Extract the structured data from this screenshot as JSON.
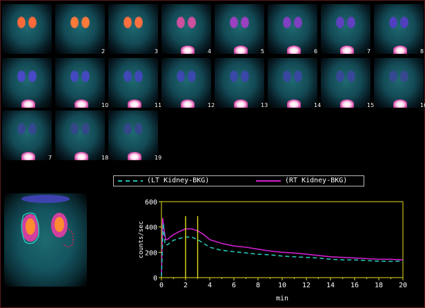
{
  "frames": [
    {
      "number": "",
      "kidney_color": "#ff6a3a",
      "bladder": false
    },
    {
      "number": "2",
      "kidney_color": "#ff7a3a",
      "bladder": false
    },
    {
      "number": "3",
      "kidney_color": "#ff7040",
      "bladder": false
    },
    {
      "number": "4",
      "kidney_color": "#d050a0",
      "bladder": true
    },
    {
      "number": "5",
      "kidney_color": "#9a40c0",
      "bladder": true
    },
    {
      "number": "6",
      "kidney_color": "#8040c0",
      "bladder": true
    },
    {
      "number": "7",
      "kidney_color": "#6040c0",
      "bladder": true
    },
    {
      "number": "8",
      "kidney_color": "#5040c0",
      "bladder": true
    },
    {
      "number": "",
      "kidney_color": "#4a48c8",
      "bladder": true
    },
    {
      "number": "10",
      "kidney_color": "#4448c0",
      "bladder": true
    },
    {
      "number": "11",
      "kidney_color": "#4048b8",
      "bladder": true
    },
    {
      "number": "12",
      "kidney_color": "#3c48b0",
      "bladder": true
    },
    {
      "number": "13",
      "kidney_color": "#3a48a8",
      "bladder": true
    },
    {
      "number": "14",
      "kidney_color": "#3848a0",
      "bladder": true
    },
    {
      "number": "15",
      "kidney_color": "#384898",
      "bladder": true
    },
    {
      "number": "16",
      "kidney_color": "#364890",
      "bladder": true
    },
    {
      "number": "7",
      "kidney_color": "#344890",
      "bladder": true
    },
    {
      "number": "18",
      "kidney_color": "#344888",
      "bladder": true
    },
    {
      "number": "19",
      "kidney_color": "#324888",
      "bladder": true
    }
  ],
  "legend": {
    "lt_label": "(LT Kidney-BKG)",
    "rt_label": "(RT Kidney-BKG)",
    "lt_color": "#27c4b4",
    "rt_color": "#d020d0"
  },
  "chart_data": {
    "type": "line",
    "xlabel": "min",
    "ylabel": "counts/sec",
    "xlim": [
      0,
      20
    ],
    "ylim": [
      0,
      600
    ],
    "x_ticks": [
      "0",
      "2",
      "4",
      "6",
      "8",
      "10",
      "12",
      "14",
      "16",
      "18",
      "20"
    ],
    "y_ticks": [
      "0",
      "200",
      "400",
      "600"
    ],
    "markers_x": [
      2,
      3
    ],
    "marker_color": "#e8e020",
    "axis_color": "#e8e020",
    "series": [
      {
        "name": "(RT Kidney-BKG)",
        "color": "#d020d0",
        "style": "solid",
        "x": [
          0,
          0.1,
          0.2,
          0.35,
          0.5,
          0.7,
          1.0,
          1.5,
          2.0,
          2.5,
          3.0,
          3.5,
          4.0,
          5.0,
          6.0,
          7.0,
          8.0,
          9.0,
          10.0,
          11.0,
          12.0,
          13.0,
          14.0,
          15.0,
          16.0,
          17.0,
          18.0,
          19.0,
          20.0
        ],
        "y": [
          20,
          470,
          390,
          300,
          300,
          320,
          340,
          365,
          385,
          385,
          370,
          340,
          300,
          270,
          250,
          240,
          225,
          210,
          200,
          195,
          185,
          175,
          165,
          160,
          155,
          150,
          145,
          145,
          140
        ]
      },
      {
        "name": "(LT Kidney-BKG)",
        "color": "#27c4b4",
        "style": "dashed",
        "x": [
          0,
          0.15,
          0.3,
          0.5,
          0.7,
          1.0,
          1.5,
          2.0,
          2.5,
          3.0,
          3.5,
          4.0,
          5.0,
          6.0,
          7.0,
          8.0,
          9.0,
          10.0,
          11.0,
          12.0,
          13.0,
          14.0,
          15.0,
          16.0,
          17.0,
          18.0,
          19.0,
          20.0
        ],
        "y": [
          10,
          430,
          260,
          260,
          275,
          295,
          310,
          320,
          320,
          300,
          270,
          240,
          215,
          205,
          195,
          185,
          180,
          170,
          165,
          160,
          155,
          145,
          140,
          140,
          135,
          130,
          128,
          130
        ]
      }
    ]
  }
}
